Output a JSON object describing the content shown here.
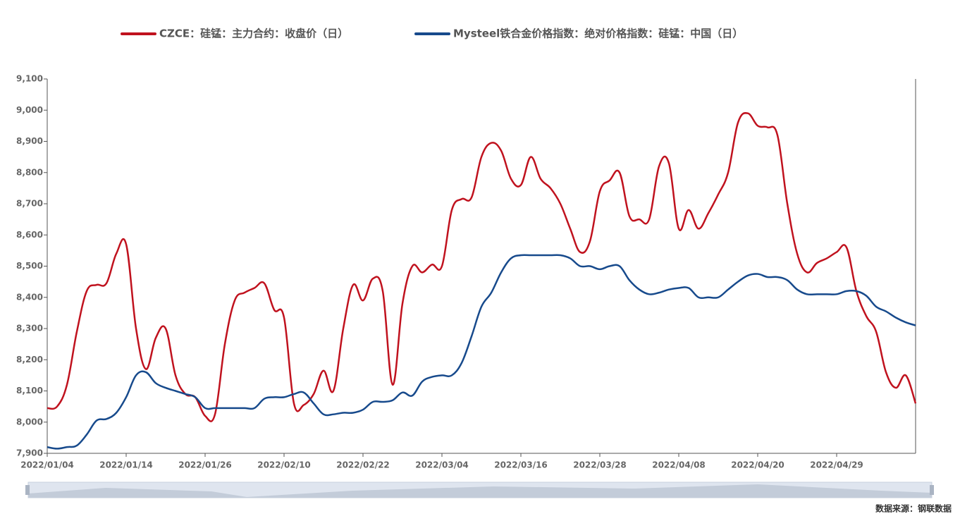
{
  "chart_data": {
    "type": "line",
    "source": "数据来源：钢联数据",
    "categories": [
      "2022/01/04",
      null,
      null,
      null,
      null,
      null,
      null,
      null,
      "2022/01/14",
      null,
      null,
      null,
      null,
      null,
      null,
      null,
      "2022/01/26",
      null,
      null,
      null,
      null,
      null,
      null,
      null,
      "2022/02/10",
      null,
      null,
      null,
      null,
      null,
      null,
      null,
      "2022/02/22",
      null,
      null,
      null,
      null,
      null,
      null,
      null,
      "2022/03/04",
      null,
      null,
      null,
      null,
      null,
      null,
      null,
      "2022/03/16",
      null,
      null,
      null,
      null,
      null,
      null,
      null,
      "2022/03/28",
      null,
      null,
      null,
      null,
      null,
      null,
      null,
      "2022/04/08",
      null,
      null,
      null,
      null,
      null,
      null,
      null,
      "2022/04/20",
      null,
      null,
      null,
      null,
      null,
      null,
      null,
      "2022/04/29",
      null,
      null,
      null,
      null,
      null,
      null,
      null,
      null
    ],
    "series": [
      {
        "name": "CZCE：硅锰：主力合约：收盘价（日）",
        "color": "#c0121e",
        "values": [
          8045,
          8050,
          8120,
          8290,
          8420,
          8440,
          8445,
          8540,
          8570,
          8300,
          8170,
          8270,
          8300,
          8150,
          8090,
          8080,
          8020,
          8025,
          8250,
          8390,
          8415,
          8430,
          8445,
          8360,
          8335,
          8060,
          8055,
          8090,
          8165,
          8100,
          8300,
          8440,
          8390,
          8460,
          8420,
          8120,
          8380,
          8500,
          8480,
          8505,
          8500,
          8680,
          8715,
          8720,
          8850,
          8895,
          8870,
          8780,
          8760,
          8850,
          8780,
          8750,
          8700,
          8620,
          8545,
          8580,
          8740,
          8775,
          8800,
          8660,
          8650,
          8650,
          8820,
          8830,
          8620,
          8680,
          8620,
          8670,
          8730,
          8800,
          8960,
          8990,
          8950,
          8945,
          8920,
          8700,
          8540,
          8480,
          8510,
          8525,
          8545,
          8560,
          8420,
          8340,
          8290,
          8160,
          8110,
          8150,
          8060
        ]
      },
      {
        "name": "Mysteel铁合金价格指数：绝对价格指数：硅锰：中国（日）",
        "color": "#174a8c",
        "values": [
          7920,
          7915,
          7920,
          7925,
          7960,
          8005,
          8010,
          8030,
          8080,
          8150,
          8160,
          8125,
          8110,
          8100,
          8090,
          8080,
          8045,
          8045,
          8045,
          8045,
          8045,
          8045,
          8075,
          8080,
          8080,
          8090,
          8095,
          8060,
          8025,
          8025,
          8030,
          8030,
          8040,
          8065,
          8065,
          8070,
          8095,
          8085,
          8130,
          8145,
          8150,
          8150,
          8190,
          8275,
          8370,
          8415,
          8480,
          8525,
          8535,
          8535,
          8535,
          8535,
          8535,
          8525,
          8500,
          8500,
          8490,
          8500,
          8500,
          8455,
          8425,
          8410,
          8415,
          8425,
          8430,
          8430,
          8400,
          8400,
          8400,
          8425,
          8450,
          8470,
          8475,
          8465,
          8465,
          8455,
          8425,
          8410,
          8410,
          8410,
          8410,
          8420,
          8420,
          8405,
          8370,
          8355,
          8335,
          8320,
          8310
        ]
      }
    ],
    "ylim": [
      7900,
      9100
    ],
    "yticks": [
      {
        "value": 7900,
        "label": "7,900"
      },
      {
        "value": 8000,
        "label": "8,000"
      },
      {
        "value": 8100,
        "label": "8,100"
      },
      {
        "value": 8200,
        "label": "8,200"
      },
      {
        "value": 8300,
        "label": "8,300"
      },
      {
        "value": 8400,
        "label": "8,400"
      },
      {
        "value": 8500,
        "label": "8,500"
      },
      {
        "value": 8600,
        "label": "8,600"
      },
      {
        "value": 8700,
        "label": "8,700"
      },
      {
        "value": 8800,
        "label": "8,800"
      },
      {
        "value": 8900,
        "label": "8,900"
      },
      {
        "value": 9000,
        "label": "9,000"
      },
      {
        "value": 9100,
        "label": "9,100"
      }
    ],
    "grid": false,
    "legend": "top"
  }
}
